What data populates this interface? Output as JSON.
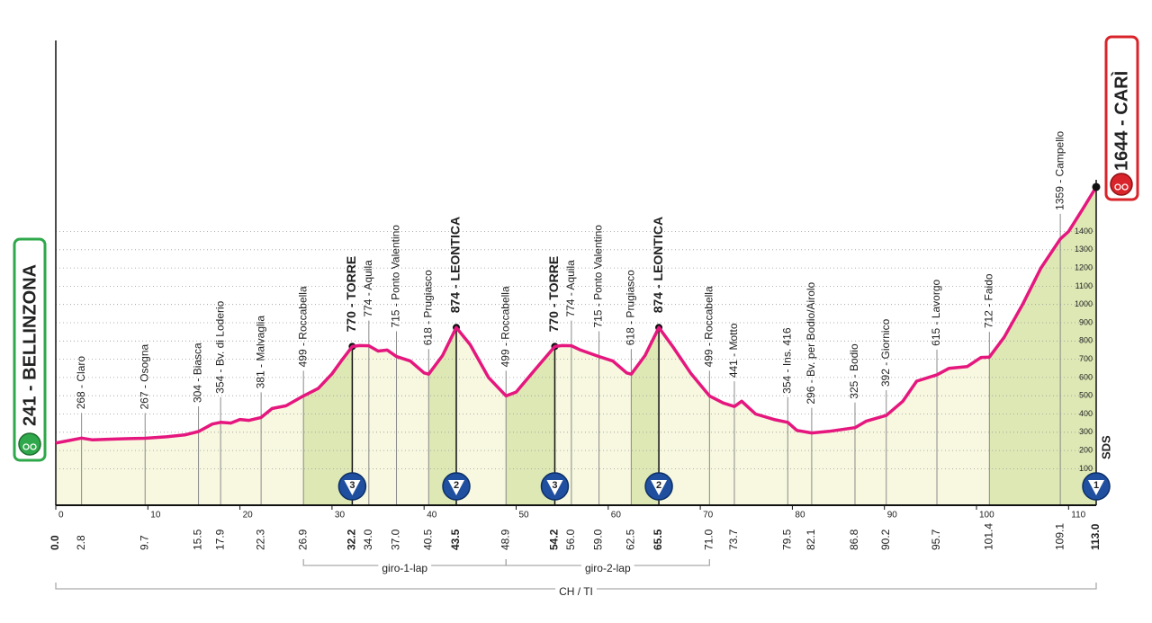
{
  "chart_data": {
    "type": "profile",
    "xlim": [
      0,
      113
    ],
    "xticks": [
      0,
      10,
      20,
      30,
      40,
      50,
      60,
      70,
      80,
      90,
      100,
      110
    ],
    "ylim": [
      -100,
      2400
    ],
    "yticks": [
      100,
      200,
      300,
      400,
      500,
      600,
      700,
      800,
      900,
      1000,
      1100,
      1200,
      1300,
      1400
    ],
    "grid": true,
    "line_color": "#e5177e",
    "fill_color": "#f7f8df",
    "climb_color": "#dde8b4",
    "profile": {
      "x": [
        0,
        1,
        2.8,
        4,
        6,
        8,
        9.7,
        12,
        14,
        15.5,
        17,
        17.9,
        19,
        20,
        21,
        22.3,
        23.5,
        25,
        26.9,
        28.5,
        30,
        31,
        32.2,
        33,
        34,
        35,
        36,
        37,
        38.5,
        40,
        40.5,
        42,
        43.5,
        45,
        47,
        48.9,
        50,
        52,
        54.2,
        55,
        56,
        57,
        59,
        60.5,
        62,
        62.5,
        64,
        65.5,
        67,
        69,
        71,
        72.5,
        73.7,
        74.5,
        76,
        78,
        79.5,
        80.5,
        82.1,
        84,
        86.8,
        88,
        90.2,
        92,
        93.5,
        95.7,
        97,
        99,
        100.5,
        101.4,
        103,
        105,
        107,
        109.1,
        110,
        111.5,
        113
      ],
      "y": [
        241,
        250,
        268,
        258,
        262,
        265,
        267,
        275,
        285,
        304,
        345,
        354,
        350,
        370,
        365,
        381,
        430,
        445,
        499,
        540,
        620,
        690,
        770,
        775,
        774,
        745,
        750,
        715,
        690,
        625,
        618,
        720,
        874,
        780,
        600,
        499,
        520,
        640,
        770,
        775,
        774,
        750,
        715,
        690,
        625,
        618,
        720,
        874,
        770,
        620,
        499,
        460,
        441,
        470,
        400,
        370,
        354,
        310,
        296,
        305,
        325,
        360,
        392,
        470,
        580,
        615,
        650,
        660,
        710,
        712,
        820,
        1000,
        1200,
        1359,
        1400,
        1520,
        1644
      ]
    },
    "climb_segments": [
      [
        26.9,
        32.2
      ],
      [
        40.5,
        43.5
      ],
      [
        48.9,
        54.2
      ],
      [
        62.5,
        65.5
      ],
      [
        101.4,
        113
      ]
    ],
    "start": {
      "km": {
        "value": 0,
        "label": "0.0"
      },
      "elevation": 241,
      "label": "241 - BELLINZONA"
    },
    "finish": {
      "km": {
        "value": 113,
        "label": "113.0"
      },
      "elevation": 1644,
      "label": "1644 - CARÌ"
    },
    "waypoints": [
      {
        "km": 2.8,
        "elevation": 268,
        "label": "268 - Claro"
      },
      {
        "km": 9.7,
        "elevation": 267,
        "label": "267 - Osogna"
      },
      {
        "km": 15.5,
        "elevation": 304,
        "label": "304 - Biasca"
      },
      {
        "km": 17.9,
        "elevation": 354,
        "label": "354 - Bv. di Loderio"
      },
      {
        "km": 22.3,
        "elevation": 381,
        "label": "381 - Malvaglia"
      },
      {
        "km": 26.9,
        "elevation": 499,
        "label": "499 - Roccabella"
      },
      {
        "km": 32.2,
        "elevation": 770,
        "label": "770 - TORRE",
        "highlight": true
      },
      {
        "km": {
          "value": 34,
          "label": "34.0"
        },
        "elevation": 774,
        "label": "774 - Aquila"
      },
      {
        "km": {
          "value": 37,
          "label": "37.0"
        },
        "elevation": 715,
        "label": "715 - Ponto Valentino"
      },
      {
        "km": 40.5,
        "elevation": 618,
        "label": "618 - Prugiasco"
      },
      {
        "km": 43.5,
        "elevation": 874,
        "label": "874 - LEONTICA",
        "highlight": true
      },
      {
        "km": 48.9,
        "elevation": 499,
        "label": "499 - Roccabella"
      },
      {
        "km": 54.2,
        "elevation": 770,
        "label": "770 - TORRE",
        "highlight": true
      },
      {
        "km": {
          "value": 56,
          "label": "56.0"
        },
        "elevation": 774,
        "label": "774 - Aquila"
      },
      {
        "km": {
          "value": 59,
          "label": "59.0"
        },
        "elevation": 715,
        "label": "715 - Ponto Valentino"
      },
      {
        "km": 62.5,
        "elevation": 618,
        "label": "618 - Prugiasco"
      },
      {
        "km": 65.5,
        "elevation": 874,
        "label": "874 - LEONTICA",
        "highlight": true
      },
      {
        "km": {
          "value": 71,
          "label": "71.0"
        },
        "elevation": 499,
        "label": "499 - Roccabella"
      },
      {
        "km": 73.7,
        "elevation": 441,
        "label": "441 - Motto"
      },
      {
        "km": 79.5,
        "elevation": 354,
        "label": "354 - Ins. 416"
      },
      {
        "km": 82.1,
        "elevation": 296,
        "label": "296 - Bv. per Bodio/Airolo"
      },
      {
        "km": 86.8,
        "elevation": 325,
        "label": "325 - Bodio"
      },
      {
        "km": 90.2,
        "elevation": 392,
        "label": "392 - Giornico"
      },
      {
        "km": 95.7,
        "elevation": 615,
        "label": "615 - Lavorgo"
      },
      {
        "km": 101.4,
        "elevation": 712,
        "label": "712 - Faido"
      },
      {
        "km": 109.1,
        "elevation": 1359,
        "label": "1359 - Campello"
      }
    ],
    "climbs": [
      {
        "km": 32.2,
        "category": 3
      },
      {
        "km": 43.5,
        "category": 2
      },
      {
        "km": 54.2,
        "category": 3
      },
      {
        "km": 65.5,
        "category": 2
      },
      {
        "km": 113,
        "category": 1
      }
    ],
    "brackets": [
      {
        "from": 26.9,
        "to": 48.9,
        "label": "giro-1-lap"
      },
      {
        "from": 48.9,
        "to": 71,
        "label": "giro-2-lap"
      },
      {
        "from": 0,
        "to": 113,
        "label": "CH / TI"
      }
    ],
    "sponsor": "SDS"
  }
}
